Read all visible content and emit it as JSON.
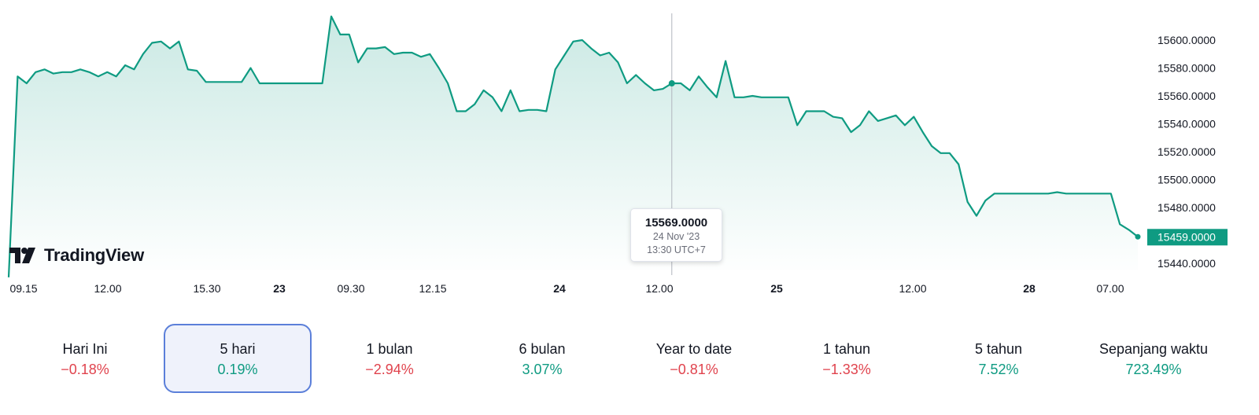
{
  "brand": {
    "name": "TradingView"
  },
  "colors": {
    "line": "#0f9b82",
    "negative": "#e0434d",
    "positive": "#0f9b82",
    "selected_border": "#5b7fd9"
  },
  "tooltip": {
    "value": "15569.0000",
    "date": "24 Nov '23",
    "time": "13:30 UTC+7"
  },
  "last_price": "15459.0000",
  "chart_data": {
    "type": "area",
    "series_color": "#0f9b82",
    "grid": false,
    "ylim": [
      15430,
      15620
    ],
    "y_ticks": [
      "15600.0000",
      "15580.0000",
      "15560.0000",
      "15540.0000",
      "15520.0000",
      "15500.0000",
      "15480.0000",
      "15460.0000",
      "15440.0000"
    ],
    "x_ticks": [
      {
        "label": "09.15",
        "bold": false
      },
      {
        "label": "12.00",
        "bold": false
      },
      {
        "label": "15.30",
        "bold": false
      },
      {
        "label": "23",
        "bold": true
      },
      {
        "label": "09.30",
        "bold": false
      },
      {
        "label": "12.15",
        "bold": false
      },
      {
        "label": "24",
        "bold": true
      },
      {
        "label": "12.00",
        "bold": false
      },
      {
        "label": "25",
        "bold": true
      },
      {
        "label": "12.00",
        "bold": false
      },
      {
        "label": "28",
        "bold": true
      },
      {
        "label": "07.00",
        "bold": false
      }
    ],
    "values": [
      15430,
      15574,
      15569,
      15577,
      15579,
      15576,
      15577,
      15577,
      15579,
      15577,
      15574,
      15577,
      15574,
      15582,
      15579,
      15590,
      15598,
      15599,
      15594,
      15599,
      15579,
      15578,
      15570,
      15570,
      15570,
      15570,
      15570,
      15580,
      15569,
      15569,
      15569,
      15569,
      15569,
      15569,
      15569,
      15569,
      15617,
      15604,
      15604,
      15584,
      15594,
      15594,
      15595,
      15590,
      15591,
      15591,
      15588,
      15590,
      15580,
      15569,
      15549,
      15549,
      15554,
      15564,
      15559,
      15549,
      15564,
      15549,
      15550,
      15550,
      15549,
      15579,
      15589,
      15599,
      15600,
      15594,
      15589,
      15591,
      15584,
      15569,
      15575,
      15569,
      15564,
      15565,
      15569,
      15569,
      15564,
      15574,
      15566,
      15559,
      15585,
      15559,
      15559,
      15560,
      15559,
      15559,
      15559,
      15559,
      15539,
      15549,
      15549,
      15549,
      15545,
      15544,
      15534,
      15539,
      15549,
      15542,
      15544,
      15546,
      15539,
      15545,
      15534,
      15524,
      15519,
      15519,
      15511,
      15484,
      15474,
      15485,
      15490,
      15490,
      15490,
      15490,
      15490,
      15490,
      15490,
      15491,
      15490,
      15490,
      15490,
      15490,
      15490,
      15490,
      15468,
      15464,
      15459
    ],
    "highlight_index": 74
  },
  "periods": [
    {
      "label": "Hari Ini",
      "change": "−0.18%",
      "direction": "neg",
      "selected": false
    },
    {
      "label": "5 hari",
      "change": "0.19%",
      "direction": "pos",
      "selected": true
    },
    {
      "label": "1 bulan",
      "change": "−2.94%",
      "direction": "neg",
      "selected": false
    },
    {
      "label": "6 bulan",
      "change": "3.07%",
      "direction": "pos",
      "selected": false
    },
    {
      "label": "Year to date",
      "change": "−0.81%",
      "direction": "neg",
      "selected": false
    },
    {
      "label": "1 tahun",
      "change": "−1.33%",
      "direction": "neg",
      "selected": false
    },
    {
      "label": "5 tahun",
      "change": "7.52%",
      "direction": "pos",
      "selected": false
    },
    {
      "label": "Sepanjang waktu",
      "change": "723.49%",
      "direction": "pos",
      "selected": false
    }
  ]
}
